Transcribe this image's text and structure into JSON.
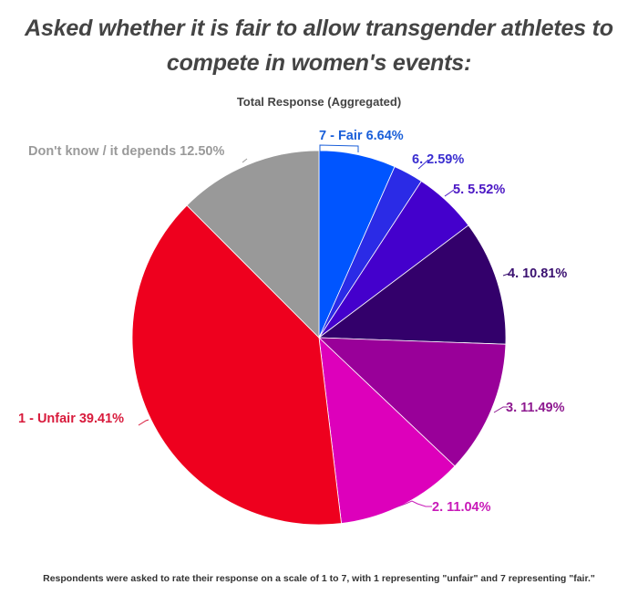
{
  "header": {
    "title_line1": "Asked whether it is fair to allow transgender athletes to",
    "title_line2": "compete in women's events:",
    "subtitle": "Total Response (Aggregated)"
  },
  "footnote": "Respondents were asked to rate their response on a scale of 1 to 7, with 1 representing \"unfair\" and 7 representing \"fair.\"",
  "chart_data": {
    "type": "pie",
    "title": "Asked whether it is fair to allow transgender athletes to compete in women's events:",
    "subtitle": "Total Response (Aggregated)",
    "start_angle_deg": 0,
    "direction": "clockwise",
    "slices": [
      {
        "label": "7 - Fair",
        "value": 6.64,
        "display": "7 - Fair 6.64%",
        "color": "#0055FF"
      },
      {
        "label": "6.",
        "value": 2.59,
        "display": "6. 2.59%",
        "color": "#2B2BE6"
      },
      {
        "label": "5.",
        "value": 5.52,
        "display": "5. 5.52%",
        "color": "#4400CC"
      },
      {
        "label": "4.",
        "value": 10.81,
        "display": "4. 10.81%",
        "color": "#33006B"
      },
      {
        "label": "3.",
        "value": 11.49,
        "display": "3. 11.49%",
        "color": "#990099"
      },
      {
        "label": "2.",
        "value": 11.04,
        "display": "2. 11.04%",
        "color": "#DD00BB"
      },
      {
        "label": "1 - Unfair",
        "value": 39.41,
        "display": "1 - Unfair 39.41%",
        "color": "#EE001E"
      },
      {
        "label": "Don't know / it depends",
        "value": 12.5,
        "display": "Don't know / it depends 12.50%",
        "color": "#999999"
      }
    ],
    "label_colors": {
      "7 - Fair": "#1A5FD9",
      "6.": "#3A2ED0",
      "5.": "#4A16C4",
      "4.": "#3A1070",
      "3.": "#8E1A90",
      "2.": "#C81AB8",
      "1 - Unfair": "#D81B3C",
      "Don't know / it depends": "#9A9A9A"
    },
    "legend": "none (inline labels)"
  }
}
